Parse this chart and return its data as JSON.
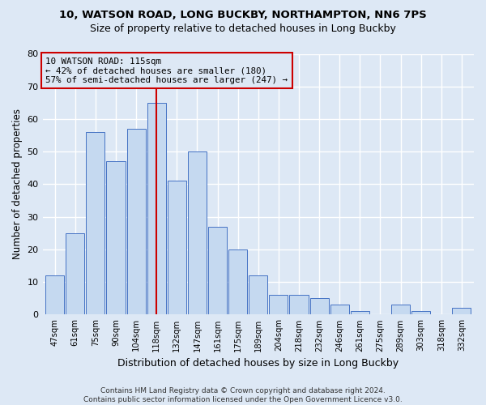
{
  "title1": "10, WATSON ROAD, LONG BUCKBY, NORTHAMPTON, NN6 7PS",
  "title2": "Size of property relative to detached houses in Long Buckby",
  "xlabel": "Distribution of detached houses by size in Long Buckby",
  "ylabel": "Number of detached properties",
  "bar_labels": [
    "47sqm",
    "61sqm",
    "75sqm",
    "90sqm",
    "104sqm",
    "118sqm",
    "132sqm",
    "147sqm",
    "161sqm",
    "175sqm",
    "189sqm",
    "204sqm",
    "218sqm",
    "232sqm",
    "246sqm",
    "261sqm",
    "275sqm",
    "289sqm",
    "303sqm",
    "318sqm",
    "332sqm"
  ],
  "bar_values": [
    12,
    25,
    56,
    47,
    57,
    65,
    41,
    50,
    27,
    20,
    12,
    6,
    6,
    5,
    3,
    1,
    0,
    3,
    1,
    0,
    2
  ],
  "bar_color": "#c5d9f0",
  "bar_edgecolor": "#4472c4",
  "vline_x": 5,
  "vline_color": "#cc0000",
  "annotation_text": "10 WATSON ROAD: 115sqm\n← 42% of detached houses are smaller (180)\n57% of semi-detached houses are larger (247) →",
  "annotation_box_color": "#cc0000",
  "ylim": [
    0,
    80
  ],
  "yticks": [
    0,
    10,
    20,
    30,
    40,
    50,
    60,
    70,
    80
  ],
  "footnote": "Contains HM Land Registry data © Crown copyright and database right 2024.\nContains public sector information licensed under the Open Government Licence v3.0.",
  "bg_color": "#dde8f5",
  "plot_bg_color": "#dde8f5",
  "grid_color": "#ffffff"
}
